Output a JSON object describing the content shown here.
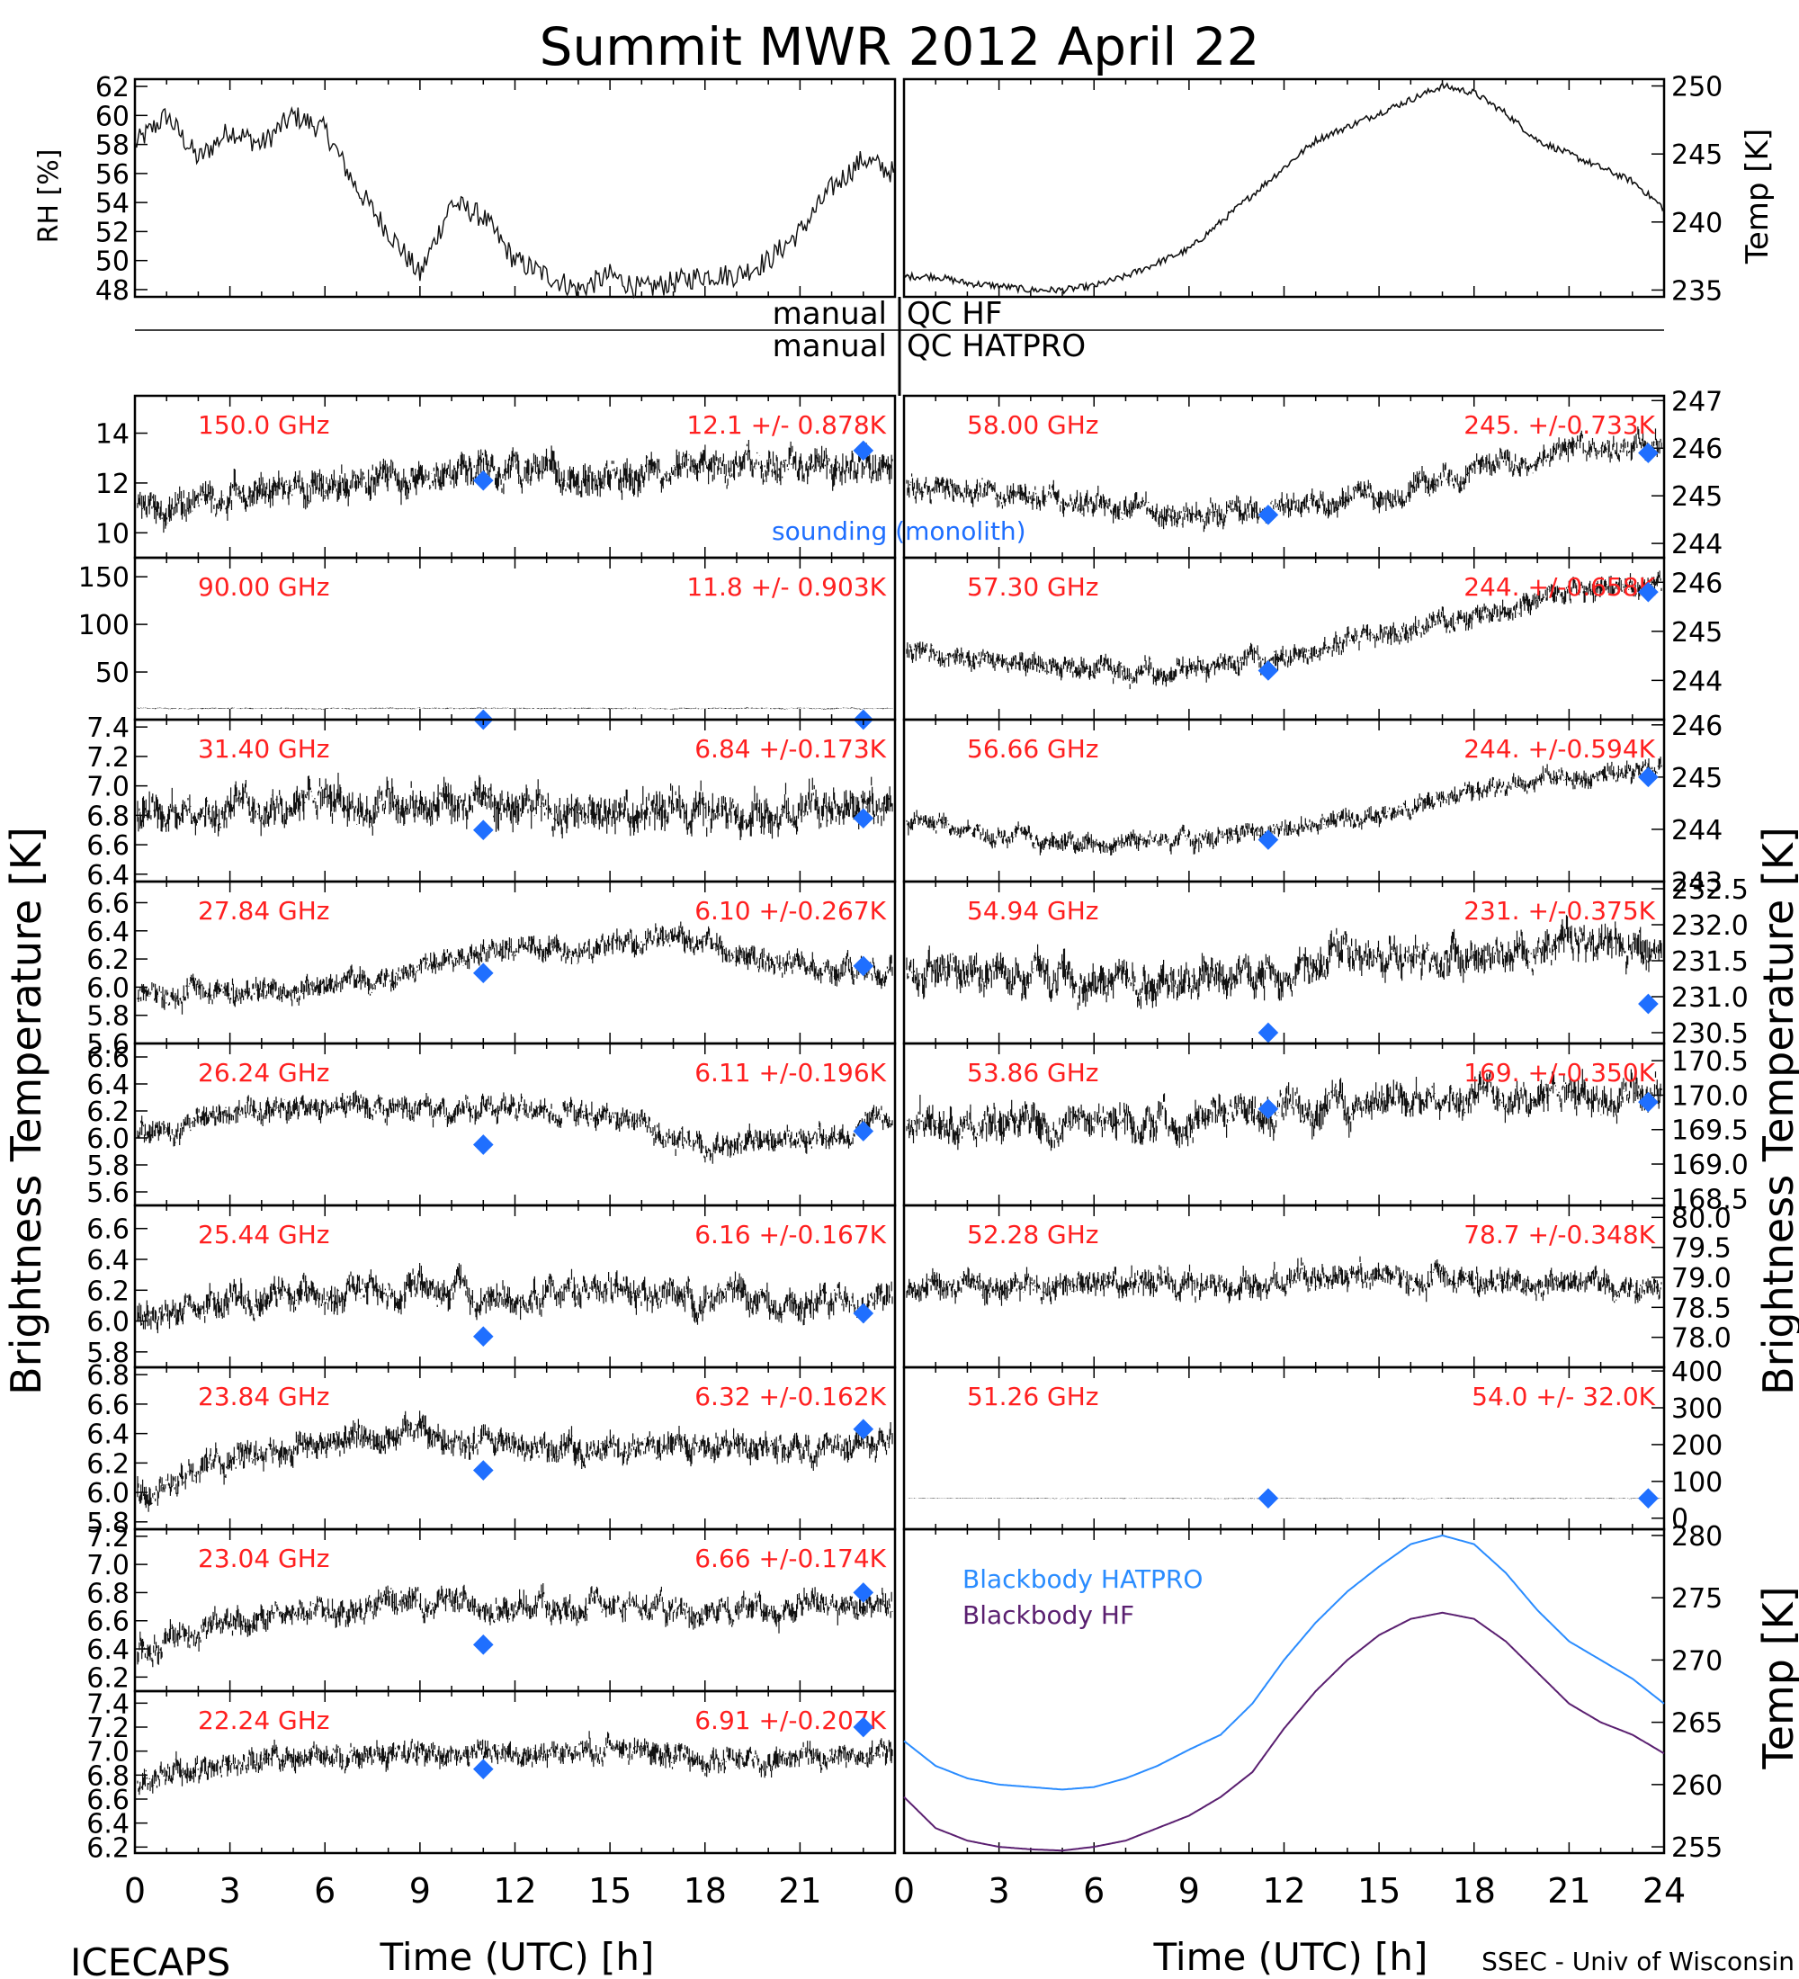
{
  "title": "Summit MWR 2012 April 22",
  "footer": {
    "left": "ICECAPS",
    "right": "SSEC - Univ of Wisconsin"
  },
  "qc": {
    "left1": "manual",
    "right1": "QC HF",
    "left2": "manual",
    "right2": "QC HATPRO"
  },
  "axis_labels": {
    "rh": "RH [%]",
    "temp_top": "Temp [K]",
    "brightness_left": "Brightness Temperature [K]",
    "brightness_right": "Brightness Temperature [K]",
    "temp_bottom": "Temp [K]",
    "time": "Time (UTC) [h]"
  },
  "legend": {
    "sounding": "sounding (monolith)",
    "bb_hatpro": "Blackbody HATPRO",
    "bb_hf": "Blackbody HF"
  },
  "colors": {
    "sounding": "#1f6fff",
    "label": "#ff2020",
    "bb_hatpro": "#2a8cff",
    "bb_hf": "#5a1f70"
  },
  "chart_data": [
    {
      "id": "rh",
      "type": "line",
      "ylabel": "RH [%]",
      "xlim": [
        0,
        24
      ],
      "ylim": [
        47.5,
        62.5
      ],
      "yticks": [
        48,
        50,
        52,
        54,
        56,
        58,
        60,
        62
      ],
      "x": [
        0,
        1,
        2,
        3,
        4,
        5,
        6,
        7,
        8,
        9,
        10,
        11,
        12,
        13,
        14,
        15,
        16,
        17,
        18,
        19,
        20,
        21,
        22,
        23,
        24
      ],
      "y": [
        58,
        60,
        57,
        59,
        58,
        60,
        59,
        55,
        52,
        49,
        54,
        53,
        50,
        49,
        48,
        49,
        48,
        48.5,
        49,
        49,
        50,
        52,
        55,
        57,
        56
      ]
    },
    {
      "id": "temp",
      "type": "line",
      "ylabel": "Temp [K]",
      "xlim": [
        0,
        24
      ],
      "ylim": [
        234.5,
        250.5
      ],
      "yticks": [
        235,
        240,
        245,
        250
      ],
      "x": [
        0,
        1,
        2,
        3,
        4,
        5,
        6,
        7,
        8,
        9,
        10,
        11,
        12,
        13,
        14,
        15,
        16,
        17,
        18,
        19,
        20,
        21,
        22,
        23,
        24
      ],
      "y": [
        236,
        236,
        235.5,
        235.3,
        235,
        235,
        235.3,
        236,
        237,
        238,
        240,
        242,
        244,
        246,
        247,
        248,
        249,
        250,
        249.5,
        248,
        246,
        245,
        244,
        243,
        241
      ]
    },
    {
      "id": "L150",
      "freq": "150.0 GHz",
      "stat": "12.1 +/- 0.878K",
      "ylim": [
        9,
        15.5
      ],
      "yticks": [
        10,
        12,
        14
      ],
      "mean": [
        11,
        11.5,
        12,
        12.3,
        12.5,
        12.2,
        12.8,
        12.5,
        12.7
      ],
      "noise": 0.9,
      "sounding": [
        [
          11,
          12.1
        ],
        [
          23,
          13.3
        ]
      ]
    },
    {
      "id": "L90",
      "freq": "90.00 GHz",
      "stat": "11.8 +/- 0.903K",
      "ylim": [
        0,
        170
      ],
      "yticks": [
        50,
        100,
        150
      ],
      "mean": [
        11.8,
        11.8
      ],
      "noise": 0.9,
      "sounding": [
        [
          11,
          0
        ],
        [
          23,
          0
        ]
      ]
    },
    {
      "id": "L31",
      "freq": "31.40 GHz",
      "stat": "6.84 +/-0.173K",
      "ylim": [
        6.35,
        7.45
      ],
      "yticks": [
        6.4,
        6.6,
        6.8,
        7.0,
        7.2,
        7.4
      ],
      "mean": [
        6.8,
        6.85,
        6.9,
        6.85,
        6.85,
        6.8,
        6.85,
        6.8,
        6.85
      ],
      "noise": 0.18,
      "sounding": [
        [
          11,
          6.7
        ],
        [
          23,
          6.78
        ]
      ]
    },
    {
      "id": "L27",
      "freq": "27.84 GHz",
      "stat": "6.10 +/-0.267K",
      "ylim": [
        5.6,
        6.75
      ],
      "yticks": [
        5.6,
        5.8,
        6.0,
        6.2,
        6.4,
        6.6
      ],
      "mean": [
        5.95,
        5.95,
        6.0,
        6.15,
        6.25,
        6.3,
        6.35,
        6.15,
        6.1
      ],
      "noise": 0.12,
      "sounding": [
        [
          11,
          6.1
        ],
        [
          23,
          6.15
        ]
      ]
    },
    {
      "id": "L26",
      "freq": "26.24 GHz",
      "stat": "6.11 +/-0.196K",
      "ylim": [
        5.5,
        6.7
      ],
      "yticks": [
        5.6,
        5.8,
        6.0,
        6.2,
        6.4,
        6.6
      ],
      "mean": [
        6.05,
        6.2,
        6.25,
        6.2,
        6.2,
        6.15,
        5.95,
        6.0,
        6.1
      ],
      "noise": 0.12,
      "sounding": [
        [
          11,
          5.95
        ],
        [
          23,
          6.05
        ]
      ]
    },
    {
      "id": "L25",
      "freq": "25.44 GHz",
      "stat": "6.16 +/-0.167K",
      "ylim": [
        5.7,
        6.75
      ],
      "yticks": [
        5.8,
        6.0,
        6.2,
        6.4,
        6.6
      ],
      "mean": [
        6.0,
        6.15,
        6.2,
        6.2,
        6.15,
        6.2,
        6.15,
        6.1,
        6.2
      ],
      "noise": 0.14,
      "sounding": [
        [
          11,
          5.9
        ],
        [
          23,
          6.05
        ]
      ]
    },
    {
      "id": "L23b",
      "freq": "23.84 GHz",
      "stat": "6.32 +/-0.162K",
      "ylim": [
        5.75,
        6.85
      ],
      "yticks": [
        5.8,
        6.0,
        6.2,
        6.4,
        6.6,
        6.8
      ],
      "mean": [
        6.0,
        6.25,
        6.35,
        6.4,
        6.3,
        6.3,
        6.35,
        6.3,
        6.35
      ],
      "noise": 0.13,
      "sounding": [
        [
          11,
          6.15
        ],
        [
          23,
          6.43
        ]
      ]
    },
    {
      "id": "L23a",
      "freq": "23.04 GHz",
      "stat": "6.66 +/-0.174K",
      "ylim": [
        6.1,
        7.25
      ],
      "yticks": [
        6.2,
        6.4,
        6.6,
        6.8,
        7.0,
        7.2
      ],
      "mean": [
        6.4,
        6.6,
        6.7,
        6.75,
        6.7,
        6.7,
        6.65,
        6.7,
        6.7
      ],
      "noise": 0.13,
      "sounding": [
        [
          11,
          6.43
        ],
        [
          23,
          6.8
        ]
      ]
    },
    {
      "id": "L22",
      "freq": "22.24 GHz",
      "stat": "6.91 +/-0.207K",
      "ylim": [
        6.15,
        7.5
      ],
      "yticks": [
        6.2,
        6.4,
        6.6,
        6.8,
        7.0,
        7.2,
        7.4
      ],
      "mean": [
        6.75,
        6.9,
        6.95,
        7.0,
        6.95,
        7.0,
        6.95,
        6.95,
        7.0
      ],
      "noise": 0.14,
      "sounding": [
        [
          11,
          6.85
        ],
        [
          23,
          7.2
        ]
      ]
    },
    {
      "id": "R58",
      "freq": "58.00 GHz",
      "stat": "245. +/-0.733K",
      "ylim": [
        243.7,
        247.1
      ],
      "yticks": [
        244,
        245,
        246,
        247
      ],
      "mean": [
        245.2,
        245,
        244.8,
        244.6,
        244.8,
        245,
        245.5,
        246,
        246.1
      ],
      "noise": 0.35,
      "sounding": [
        [
          11.5,
          244.6
        ],
        [
          23.5,
          245.9
        ]
      ]
    },
    {
      "id": "R57",
      "freq": "57.30 GHz",
      "stat": "244. +/-0.658K",
      "ylim": [
        243.2,
        246.5
      ],
      "yticks": [
        244,
        245,
        246
      ],
      "mean": [
        244.6,
        244.3,
        244.2,
        244.2,
        244.5,
        244.9,
        245.3,
        245.8,
        246
      ],
      "noise": 0.3,
      "sounding": [
        [
          11.5,
          244.2
        ],
        [
          23.5,
          245.8
        ]
      ]
    },
    {
      "id": "R56",
      "freq": "56.66 GHz",
      "stat": "244. +/-0.594K",
      "ylim": [
        243,
        246.1
      ],
      "yticks": [
        243,
        244,
        245,
        246
      ],
      "mean": [
        244.1,
        243.9,
        243.7,
        243.8,
        244,
        244.3,
        244.7,
        245,
        245.1
      ],
      "noise": 0.25,
      "sounding": [
        [
          11.5,
          243.8
        ],
        [
          23.5,
          245
        ]
      ]
    },
    {
      "id": "R54",
      "freq": "54.94 GHz",
      "stat": "231. +/-0.375K",
      "ylim": [
        230.35,
        232.6
      ],
      "yticks": [
        230.5,
        231.0,
        231.5,
        232.0,
        232.5
      ],
      "mean": [
        231.4,
        231.3,
        231.2,
        231.3,
        231.4,
        231.5,
        231.6,
        231.7,
        231.7
      ],
      "noise": 0.35,
      "sounding": [
        [
          11.5,
          230.5
        ],
        [
          23.5,
          230.9
        ]
      ]
    },
    {
      "id": "R53",
      "freq": "53.86 GHz",
      "stat": "169. +/-0.350K",
      "ylim": [
        168.4,
        170.75
      ],
      "yticks": [
        168.5,
        169.0,
        169.5,
        170.0,
        170.5
      ],
      "mean": [
        169.6,
        169.6,
        169.6,
        169.7,
        169.8,
        169.9,
        170,
        170,
        170
      ],
      "noise": 0.35,
      "sounding": [
        [
          11.5,
          169.8
        ],
        [
          23.5,
          169.9
        ]
      ]
    },
    {
      "id": "R52",
      "freq": "52.28 GHz",
      "stat": "78.7 +/-0.348K",
      "ylim": [
        77.5,
        80.2
      ],
      "yticks": [
        78.0,
        78.5,
        79.0,
        79.5,
        80.0
      ],
      "mean": [
        78.8,
        78.8,
        78.9,
        78.9,
        78.9,
        79.0,
        78.9,
        78.9,
        78.9
      ],
      "noise": 0.3
    },
    {
      "id": "R51",
      "freq": "51.26 GHz",
      "stat": "54.0 +/- 32.0K",
      "ylim": [
        -30,
        410
      ],
      "yticks": [
        0,
        100,
        200,
        300,
        400
      ],
      "mean": [
        54,
        54
      ],
      "noise": 1.5,
      "sounding": [
        [
          11.5,
          54
        ],
        [
          23.5,
          54
        ]
      ]
    },
    {
      "id": "bb",
      "type": "line",
      "ylabel": "Temp [K]",
      "xlim": [
        0,
        24
      ],
      "ylim": [
        254.5,
        280.5
      ],
      "yticks": [
        255,
        260,
        265,
        270,
        275,
        280
      ],
      "series": [
        {
          "name": "Blackbody HATPRO",
          "x": [
            0,
            1,
            2,
            3,
            4,
            5,
            6,
            7,
            8,
            9,
            10,
            11,
            12,
            13,
            14,
            15,
            16,
            17,
            18,
            19,
            20,
            21,
            22,
            23,
            24
          ],
          "y": [
            263.5,
            261.5,
            260.5,
            260,
            259.8,
            259.6,
            259.8,
            260.5,
            261.5,
            262.8,
            264,
            266.5,
            270,
            273,
            275.5,
            277.5,
            279.3,
            280,
            279.3,
            277,
            274,
            271.5,
            270,
            268.5,
            266.5
          ]
        },
        {
          "name": "Blackbody HF",
          "x": [
            0,
            1,
            2,
            3,
            4,
            5,
            6,
            7,
            8,
            9,
            10,
            11,
            12,
            13,
            14,
            15,
            16,
            17,
            18,
            19,
            20,
            21,
            22,
            23,
            24
          ],
          "y": [
            259,
            256.5,
            255.5,
            255,
            254.8,
            254.7,
            255,
            255.5,
            256.5,
            257.5,
            259,
            261,
            264.5,
            267.5,
            270,
            272,
            273.3,
            273.8,
            273.3,
            271.5,
            269,
            266.5,
            265,
            264,
            262.5
          ]
        }
      ]
    }
  ]
}
